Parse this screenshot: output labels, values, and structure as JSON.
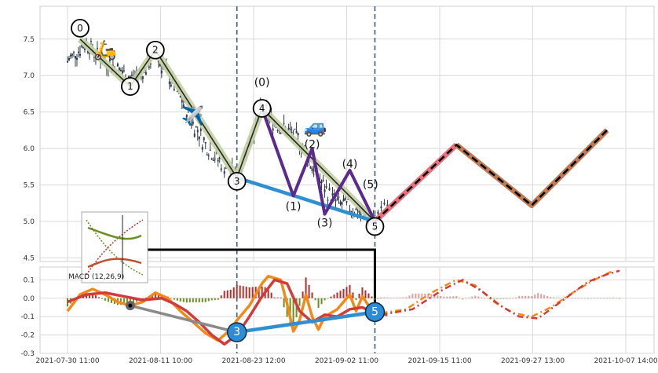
{
  "chart_data": [
    {
      "type": "candlestick",
      "panel": "price",
      "x_ticks": [
        "2021-07-30 11:00",
        "2021-08-11 10:00",
        "2021-08-23 12:00",
        "2021-09-02 11:00",
        "2021-09-15 11:00",
        "2021-09-27 13:00",
        "2021-10-07 14:00"
      ],
      "y_ticks": [
        "7.5",
        "7.0",
        "6.5",
        "6.0",
        "5.5",
        "5.0",
        "4.5"
      ],
      "ylim": [
        4.45,
        7.95
      ],
      "price_path": [
        [
          0,
          7.2
        ],
        [
          3,
          7.45
        ],
        [
          5,
          7.25
        ],
        [
          8,
          7.1
        ],
        [
          10,
          6.95
        ],
        [
          12,
          7.05
        ],
        [
          14,
          7.3
        ],
        [
          16,
          7.0
        ],
        [
          18,
          6.7
        ],
        [
          20,
          6.35
        ],
        [
          22,
          6.05
        ],
        [
          24,
          5.85
        ],
        [
          26,
          5.7
        ],
        [
          27,
          5.6
        ],
        [
          28,
          5.9
        ],
        [
          30,
          6.3
        ],
        [
          31,
          6.55
        ],
        [
          33,
          6.35
        ],
        [
          35,
          6.25
        ],
        [
          37,
          6.1
        ],
        [
          39,
          5.75
        ],
        [
          41,
          5.45
        ],
        [
          43,
          5.25
        ],
        [
          45,
          5.2
        ],
        [
          47,
          5.1
        ],
        [
          49,
          5.0
        ],
        [
          50,
          5.1
        ],
        [
          51,
          5.2
        ]
      ],
      "wave_labels": [
        {
          "label": "0",
          "x": 2,
          "y": 7.65
        },
        {
          "label": "1",
          "x": 10,
          "y": 6.85
        },
        {
          "label": "2",
          "x": 14,
          "y": 7.35
        },
        {
          "label": "3",
          "x": 27,
          "y": 5.55
        },
        {
          "label": "4",
          "x": 31,
          "y": 6.55
        },
        {
          "label": "5",
          "x": 49,
          "y": 4.93
        }
      ],
      "sub_wave_labels": [
        {
          "label": "(0)",
          "x": 31,
          "y": 6.9
        },
        {
          "label": "(1)",
          "x": 36,
          "y": 5.2
        },
        {
          "label": "(2)",
          "x": 39,
          "y": 6.05
        },
        {
          "label": "(3)",
          "x": 41,
          "y": 4.97
        },
        {
          "label": "(4)",
          "x": 45,
          "y": 5.78
        },
        {
          "label": "(5)",
          "x": 48.3,
          "y": 5.5
        }
      ],
      "main_wave_path": [
        [
          2,
          7.5
        ],
        [
          10,
          6.85
        ],
        [
          14,
          7.35
        ],
        [
          27,
          5.6
        ],
        [
          31,
          6.55
        ],
        [
          49,
          5.0
        ]
      ],
      "sub_wave_path": [
        [
          31,
          6.55
        ],
        [
          36,
          5.35
        ],
        [
          39,
          6.0
        ],
        [
          41,
          5.1
        ],
        [
          45,
          5.7
        ],
        [
          49,
          5.0
        ]
      ],
      "trend_line": [
        [
          27,
          5.6
        ],
        [
          49,
          5.0
        ]
      ],
      "projection_path": [
        [
          49,
          5.0
        ],
        [
          62,
          6.05
        ],
        [
          74,
          5.22
        ],
        [
          86,
          6.25
        ]
      ],
      "vlines_x": [
        27,
        49
      ],
      "emoji": [
        {
          "char": "🛵",
          "x": 6,
          "y": 7.35
        },
        {
          "char": "✈️",
          "x": 20,
          "y": 6.45
        },
        {
          "char": "🚙",
          "x": 39.5,
          "y": 6.3
        }
      ],
      "x_index_range": [
        0,
        89
      ]
    },
    {
      "type": "line",
      "panel": "macd",
      "label": "MACD (12,26,9)",
      "y_ticks": [
        "0.1",
        "0.0",
        "-0.1",
        "-0.2",
        "-0.3"
      ],
      "ylim": [
        -0.3,
        0.17
      ],
      "series": [
        {
          "name": "dif",
          "values": [
            [
              0,
              -0.07
            ],
            [
              2,
              0.02
            ],
            [
              4,
              0.05
            ],
            [
              6,
              0.02
            ],
            [
              8,
              -0.02
            ],
            [
              10,
              -0.04
            ],
            [
              12,
              -0.02
            ],
            [
              14,
              0.03
            ],
            [
              16,
              0.0
            ],
            [
              18,
              -0.07
            ],
            [
              20,
              -0.13
            ],
            [
              22,
              -0.19
            ],
            [
              24,
              -0.23
            ],
            [
              26,
              -0.17
            ],
            [
              27,
              -0.12
            ],
            [
              29,
              -0.04
            ],
            [
              31,
              0.08
            ],
            [
              32,
              0.12
            ],
            [
              34,
              0.1
            ],
            [
              35,
              -0.03
            ],
            [
              36,
              -0.18
            ],
            [
              37,
              -0.12
            ],
            [
              38,
              0.02
            ],
            [
              39,
              -0.1
            ],
            [
              40,
              -0.17
            ],
            [
              41,
              -0.1
            ],
            [
              43,
              -0.06
            ],
            [
              45,
              0.02
            ],
            [
              46,
              -0.07
            ],
            [
              47,
              0.01
            ],
            [
              49,
              -0.09
            ],
            [
              50,
              -0.08
            ]
          ]
        },
        {
          "name": "dea",
          "values": [
            [
              0,
              -0.02
            ],
            [
              3,
              0.02
            ],
            [
              6,
              0.03
            ],
            [
              9,
              0.01
            ],
            [
              12,
              -0.01
            ],
            [
              15,
              0.0
            ],
            [
              17,
              -0.03
            ],
            [
              19,
              -0.07
            ],
            [
              21,
              -0.13
            ],
            [
              23,
              -0.2
            ],
            [
              25,
              -0.25
            ],
            [
              27,
              -0.2
            ],
            [
              29,
              -0.1
            ],
            [
              31,
              0.01
            ],
            [
              33,
              0.1
            ],
            [
              35,
              0.08
            ],
            [
              37,
              -0.07
            ],
            [
              39,
              -0.13
            ],
            [
              41,
              -0.09
            ],
            [
              43,
              -0.1
            ],
            [
              45,
              -0.06
            ],
            [
              47,
              -0.05
            ],
            [
              49,
              -0.08
            ],
            [
              51,
              -0.09
            ]
          ]
        },
        {
          "name": "dif_projection",
          "values": [
            [
              50,
              -0.08
            ],
            [
              54,
              -0.06
            ],
            [
              58,
              0.03
            ],
            [
              62,
              0.1
            ],
            [
              65,
              0.07
            ],
            [
              68,
              -0.02
            ],
            [
              71,
              -0.08
            ],
            [
              74,
              -0.1
            ],
            [
              77,
              -0.05
            ],
            [
              81,
              0.04
            ],
            [
              84,
              0.1
            ],
            [
              87,
              0.15
            ]
          ]
        },
        {
          "name": "dea_projection",
          "values": [
            [
              50,
              -0.09
            ],
            [
              55,
              -0.06
            ],
            [
              60,
              0.05
            ],
            [
              63,
              0.1
            ],
            [
              66,
              0.04
            ],
            [
              69,
              -0.04
            ],
            [
              72,
              -0.1
            ],
            [
              75,
              -0.11
            ],
            [
              79,
              -0.01
            ],
            [
              83,
              0.09
            ],
            [
              86,
              0.13
            ],
            [
              88,
              0.15
            ]
          ]
        }
      ],
      "divergence_points": [
        {
          "label": "3",
          "x": 27,
          "y": -0.185
        },
        {
          "label": "5",
          "x": 49,
          "y": -0.075
        },
        {
          "label": "",
          "x": 10,
          "y": -0.04
        }
      ],
      "histogram_note": "bars at every index, red above zero, green below zero"
    }
  ],
  "colors": {
    "grid": "#d9d9d9",
    "axis": "#cfcfcf",
    "candle": "#2f3a4a",
    "main_wave_halo": "#c6cfa6",
    "main_wave": "#1e2a1c",
    "sub_wave": "#5b2a8e",
    "trend": "#2f8fd0",
    "proj_red": "#e8707c",
    "proj_brown": "#c07a55",
    "vline": "#41606e",
    "connector": "#000000",
    "dif": "#f28a1b",
    "dea": "#d23b3b",
    "hist_pos": "#b03030",
    "hist_neg": "#6b8e23",
    "marker": "#2c8dd6"
  }
}
